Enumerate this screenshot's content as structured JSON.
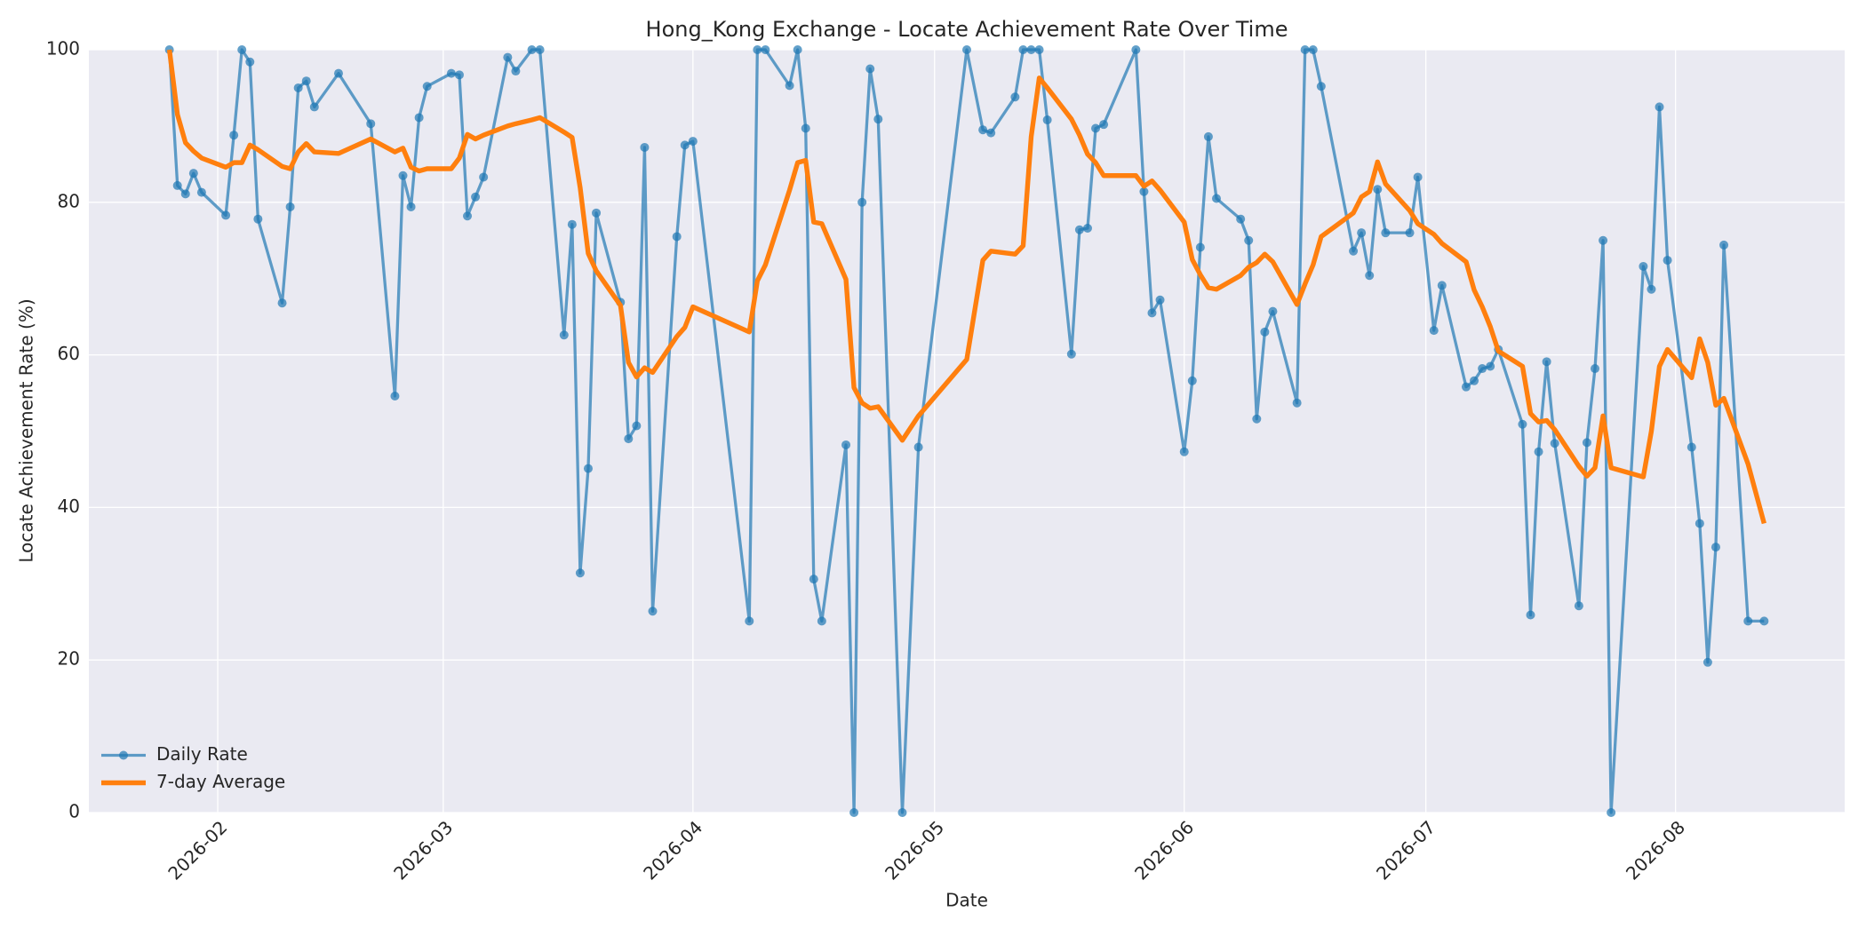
{
  "chart_data": {
    "type": "line",
    "title": "Hong_Kong Exchange - Locate Achievement Rate Over Time",
    "x_label": "Date",
    "y_label": "Locate Achievement Rate (%)",
    "x": [
      "2026-01-26",
      "2026-01-27",
      "2026-01-28",
      "2026-01-29",
      "2026-01-30",
      "2026-02-02",
      "2026-02-03",
      "2026-02-04",
      "2026-02-05",
      "2026-02-06",
      "2026-02-09",
      "2026-02-10",
      "2026-02-11",
      "2026-02-12",
      "2026-02-13",
      "2026-02-16",
      "2026-02-20",
      "2026-02-23",
      "2026-02-24",
      "2026-02-25",
      "2026-02-26",
      "2026-02-27",
      "2026-03-02",
      "2026-03-03",
      "2026-03-04",
      "2026-03-05",
      "2026-03-06",
      "2026-03-09",
      "2026-03-10",
      "2026-03-12",
      "2026-03-13",
      "2026-03-16",
      "2026-03-17",
      "2026-03-18",
      "2026-03-19",
      "2026-03-20",
      "2026-03-23",
      "2026-03-24",
      "2026-03-25",
      "2026-03-26",
      "2026-03-27",
      "2026-03-30",
      "2026-03-31",
      "2026-04-01",
      "2026-04-08",
      "2026-04-09",
      "2026-04-10",
      "2026-04-13",
      "2026-04-14",
      "2026-04-15",
      "2026-04-16",
      "2026-04-17",
      "2026-04-20",
      "2026-04-21",
      "2026-04-22",
      "2026-04-23",
      "2026-04-24",
      "2026-04-27",
      "2026-04-29",
      "2026-05-05",
      "2026-05-07",
      "2026-05-08",
      "2026-05-11",
      "2026-05-12",
      "2026-05-13",
      "2026-05-14",
      "2026-05-15",
      "2026-05-18",
      "2026-05-19",
      "2026-05-20",
      "2026-05-21",
      "2026-05-22",
      "2026-05-26",
      "2026-05-27",
      "2026-05-28",
      "2026-05-29",
      "2026-06-01",
      "2026-06-02",
      "2026-06-03",
      "2026-06-04",
      "2026-06-05",
      "2026-06-08",
      "2026-06-09",
      "2026-06-10",
      "2026-06-11",
      "2026-06-12",
      "2026-06-15",
      "2026-06-16",
      "2026-06-17",
      "2026-06-18",
      "2026-06-22",
      "2026-06-23",
      "2026-06-24",
      "2026-06-25",
      "2026-06-26",
      "2026-06-29",
      "2026-06-30",
      "2026-07-02",
      "2026-07-03",
      "2026-07-06",
      "2026-07-07",
      "2026-07-08",
      "2026-07-09",
      "2026-07-10",
      "2026-07-13",
      "2026-07-14",
      "2026-07-15",
      "2026-07-16",
      "2026-07-17",
      "2026-07-20",
      "2026-07-21",
      "2026-07-22",
      "2026-07-23",
      "2026-07-24",
      "2026-07-28",
      "2026-07-29",
      "2026-07-30",
      "2026-07-31",
      "2026-08-03",
      "2026-08-04",
      "2026-08-05",
      "2026-08-06",
      "2026-08-07",
      "2026-08-10",
      "2026-08-12"
    ],
    "series": [
      {
        "name": "Daily Rate",
        "color": "#1f77b4",
        "marker": "circle",
        "values": [
          100,
          82.2,
          81.1,
          83.8,
          81.3,
          78.3,
          88.8,
          100,
          98.4,
          77.8,
          66.8,
          79.4,
          95,
          95.9,
          92.5,
          96.9,
          90.3,
          54.6,
          83.5,
          79.4,
          91.1,
          95.2,
          96.9,
          96.7,
          78.2,
          80.7,
          83.3,
          99,
          97.2,
          100,
          100,
          62.6,
          77.1,
          31.4,
          45.1,
          78.6,
          66.9,
          49,
          50.7,
          87.2,
          26.4,
          75.5,
          87.5,
          88,
          25.1,
          100,
          100,
          95.3,
          100,
          89.7,
          30.6,
          25.1,
          48.2,
          0,
          80,
          97.5,
          90.9,
          0,
          47.9,
          100,
          89.5,
          89.1,
          93.8,
          100,
          100,
          100,
          90.8,
          60.1,
          76.4,
          76.6,
          89.7,
          90.2,
          100,
          81.4,
          65.5,
          67.2,
          47.3,
          56.6,
          74.1,
          88.6,
          80.5,
          77.8,
          75,
          51.6,
          63,
          65.7,
          53.7,
          100,
          100,
          95.2,
          73.6,
          76,
          70.4,
          81.7,
          76,
          76,
          83.3,
          63.2,
          69.1,
          55.8,
          56.6,
          58.2,
          58.5,
          60.7,
          50.9,
          25.9,
          47.3,
          59.1,
          48.4,
          27.1,
          48.5,
          58.2,
          75,
          0,
          71.6,
          68.6,
          92.5,
          72.4,
          47.9,
          37.9,
          19.7,
          34.8,
          74.4,
          25.1,
          25.1
        ]
      },
      {
        "name": "7-day Average",
        "color": "#ff7f0e",
        "values": [
          100,
          91.5,
          87.8,
          86.7,
          85.8,
          84.6,
          85.2,
          85.2,
          87.5,
          86.9,
          84.7,
          84.4,
          86.6,
          87.7,
          86.6,
          86.4,
          88.3,
          86.6,
          87.1,
          84.6,
          84.1,
          84.4,
          84.4,
          85.8,
          88.9,
          88.3,
          88.8,
          90,
          90.3,
          90.8,
          91.1,
          89.2,
          88.5,
          81.9,
          73.3,
          71,
          66.5,
          59,
          57.1,
          58.3,
          57.7,
          62.4,
          63.6,
          66.3,
          63,
          69.7,
          71.8,
          81.6,
          85.2,
          85.5,
          77.4,
          77.2,
          69.9,
          55.7,
          53.7,
          53,
          53.2,
          48.8,
          52,
          59.4,
          72.4,
          73.6,
          73.2,
          74.3,
          88.6,
          96.3,
          95,
          90.9,
          88.8,
          86.3,
          85.2,
          83.5,
          83.5,
          82.1,
          82.8,
          81.6,
          77.4,
          72.5,
          70.5,
          68.8,
          68.6,
          70.4,
          71.5,
          72.1,
          73.2,
          72.2,
          66.6,
          69.3,
          71.8,
          75.5,
          78.6,
          80.7,
          81.4,
          85.3,
          82.4,
          78.9,
          77.2,
          75.8,
          74.6,
          72.2,
          68.5,
          66.3,
          63.7,
          60.5,
          58.5,
          52.3,
          51.2,
          51.4,
          50.2,
          45.4,
          44.1,
          45.2,
          52,
          45.2,
          44,
          50,
          58.5,
          60.7,
          57,
          62.1,
          59,
          53.4,
          54.3,
          45.7,
          37.9
        ]
      }
    ],
    "xlim": [
      "2026-01-16",
      "2026-08-22"
    ],
    "xticks": [
      "2026-02",
      "2026-03",
      "2026-04",
      "2026-05",
      "2026-06",
      "2026-07",
      "2026-08"
    ],
    "ylim": [
      0,
      100
    ],
    "yticks": [
      0,
      20,
      40,
      60,
      80,
      100
    ],
    "grid": true,
    "legend": "lower left"
  }
}
